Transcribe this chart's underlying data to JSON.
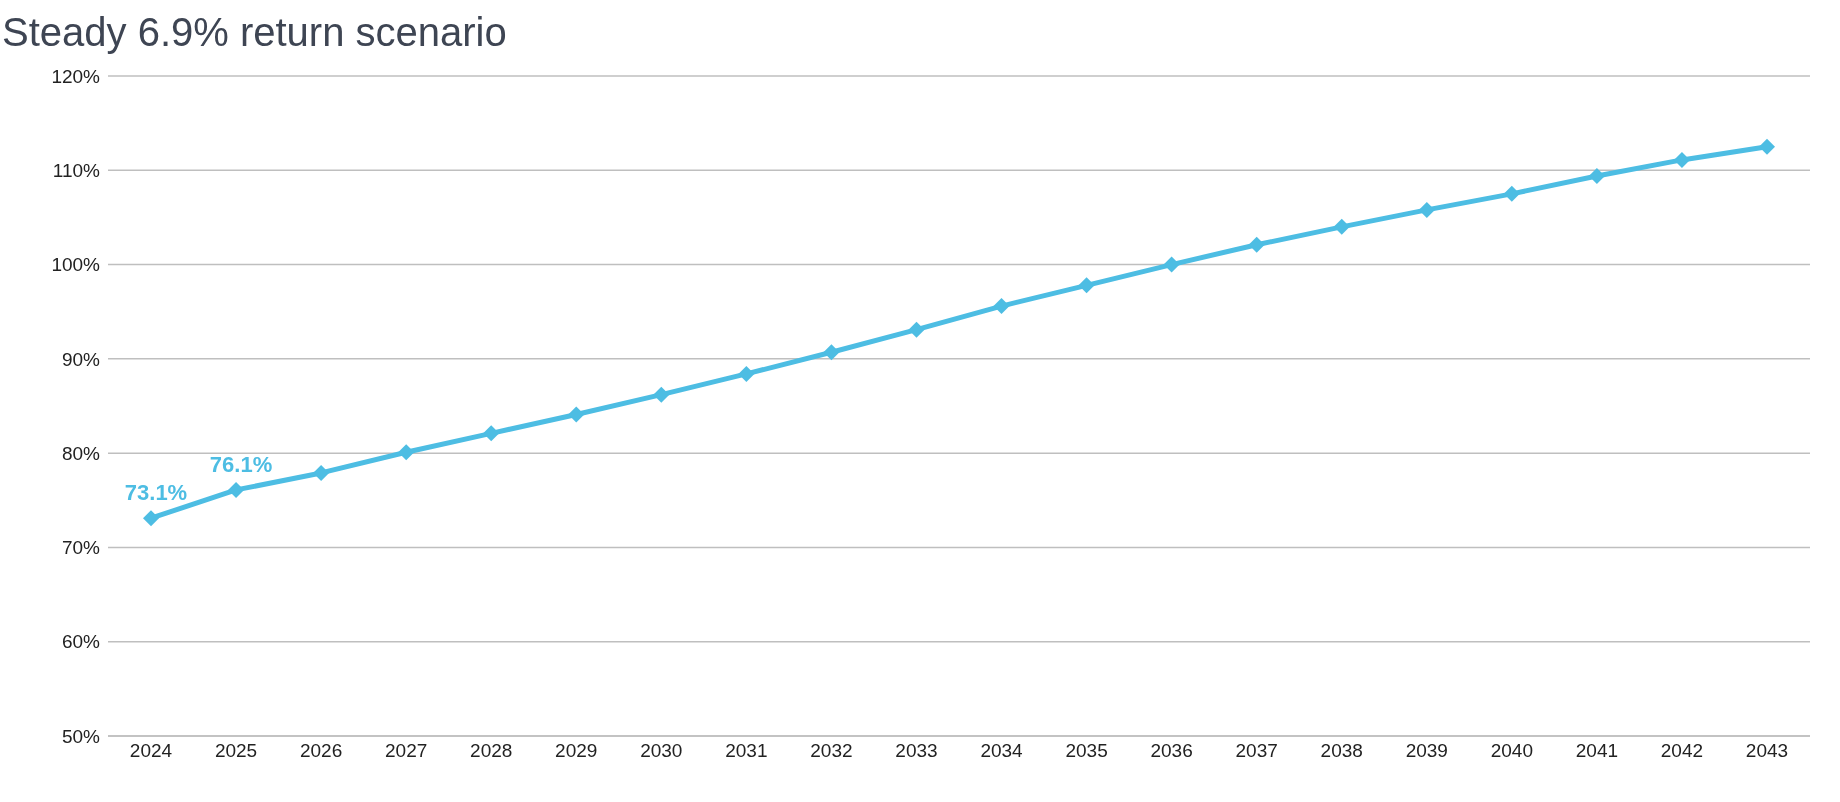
{
  "chart_data": {
    "type": "line",
    "title": "Steady 6.9% return scenario",
    "categories": [
      "2024",
      "2025",
      "2026",
      "2027",
      "2028",
      "2029",
      "2030",
      "2031",
      "2032",
      "2033",
      "2034",
      "2035",
      "2036",
      "2037",
      "2038",
      "2039",
      "2040",
      "2041",
      "2042",
      "2043"
    ],
    "series": [
      {
        "color": "#4dbde3",
        "values": [
          73.1,
          76.1,
          77.9,
          80.1,
          82.1,
          84.1,
          86.2,
          88.4,
          90.7,
          93.1,
          95.6,
          97.8,
          100.0,
          102.1,
          104.0,
          105.8,
          107.5,
          109.4,
          111.1,
          112.5
        ],
        "value_labels": [
          "73.1%",
          "76.1%",
          null,
          null,
          null,
          null,
          null,
          null,
          null,
          null,
          null,
          null,
          null,
          null,
          null,
          null,
          null,
          null,
          null,
          null
        ]
      }
    ],
    "ylim": [
      50,
      120
    ],
    "yticks": [
      {
        "value": 50,
        "label": "50%"
      },
      {
        "value": 60,
        "label": "60%"
      },
      {
        "value": 70,
        "label": "70%"
      },
      {
        "value": 80,
        "label": "80%"
      },
      {
        "value": 90,
        "label": "90%"
      },
      {
        "value": 100,
        "label": "100%"
      },
      {
        "value": 110,
        "label": "110%"
      },
      {
        "value": 120,
        "label": "120%"
      }
    ],
    "grid": "y",
    "marker": "diamond",
    "line_style": "solid",
    "legend": false
  }
}
